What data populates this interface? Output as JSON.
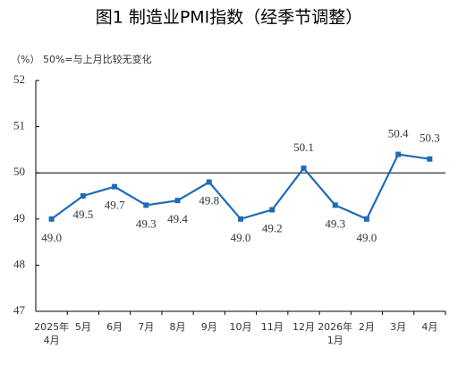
{
  "chart_data": {
    "type": "line",
    "title": "图1 制造业PMI指数（经季节调整）",
    "subtitle": "（%） 50%=与上月比较无变化",
    "categories": [
      "2025年\n4月",
      "5月",
      "6月",
      "7月",
      "8月",
      "9月",
      "10月",
      "11月",
      "12月",
      "2026年\n1月",
      "2月",
      "3月",
      "4月"
    ],
    "series": [
      {
        "name": "制造业PMI",
        "color": "#1f6bb5",
        "values": [
          49.0,
          49.5,
          49.7,
          49.3,
          49.4,
          49.8,
          49.0,
          49.2,
          50.1,
          49.3,
          49.0,
          50.4,
          50.3
        ],
        "value_labels": [
          "49.0",
          "49.5",
          "49.7",
          "49.3",
          "49.4",
          "49.8",
          "49.0",
          "49.2",
          "50.1",
          "49.3",
          "49.0",
          "50.4",
          "50.3"
        ]
      }
    ],
    "ylim": [
      47,
      52
    ],
    "yticks": [
      47,
      48,
      49,
      50,
      51,
      52
    ],
    "reference_line": 50
  }
}
